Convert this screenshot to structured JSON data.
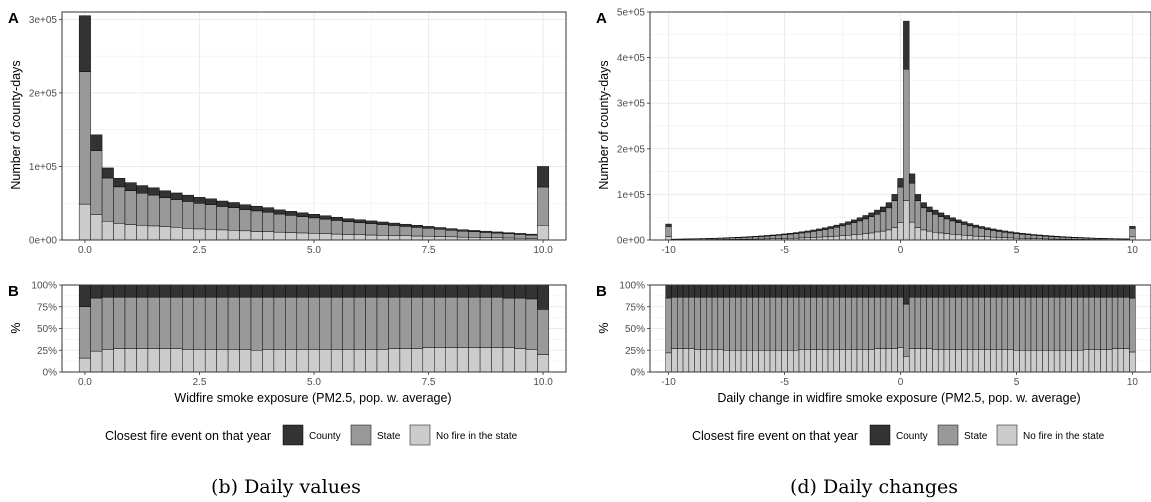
{
  "colors": {
    "county": "#333333",
    "state": "#999999",
    "nofire": "#cccccc",
    "grid": "#ebebeb",
    "panel_border": "#333333"
  },
  "legend": {
    "title": "Closest fire event on that year",
    "entries": [
      {
        "key": "county",
        "label": "County"
      },
      {
        "key": "state",
        "label": "State"
      },
      {
        "key": "nofire",
        "label": "No fire in the state"
      }
    ]
  },
  "captions": {
    "left": "(b) Daily values",
    "right": "(d) Daily changes"
  },
  "chart_data": [
    {
      "id": "b",
      "type": "bar",
      "stacked": true,
      "panel_labels": [
        "A",
        "B"
      ],
      "xlabel": "Widfire smoke exposure (PM2.5, pop. w. average)",
      "ylabel_top": "Number of county-days",
      "ylabel_bottom": "%",
      "xlim": [
        -0.5,
        10.5
      ],
      "ylim_top": [
        0,
        310000
      ],
      "ylim_bottom": [
        0,
        1
      ],
      "grid": true,
      "x_ticks": [
        0,
        2.5,
        5,
        7.5,
        10
      ],
      "x_tick_labels": [
        "0.0",
        "2.5",
        "5.0",
        "7.5",
        "10.0"
      ],
      "y_ticks_top": [
        0,
        100000,
        200000,
        300000
      ],
      "y_tick_labels_top": [
        "0e+00",
        "1e+05",
        "2e+05",
        "3e+05"
      ],
      "y_ticks_bottom": [
        0,
        0.25,
        0.5,
        0.75,
        1
      ],
      "y_tick_labels_bottom": [
        "0%",
        "25%",
        "50%",
        "75%",
        "100%"
      ],
      "x_start": 0,
      "x_step": 0.25,
      "n_bars": 41,
      "totals": [
        305000,
        143000,
        98000,
        84000,
        78000,
        74000,
        71000,
        67000,
        64000,
        61000,
        58000,
        56000,
        53000,
        51000,
        48000,
        46000,
        44000,
        41000,
        39000,
        37000,
        35000,
        33000,
        31000,
        29000,
        27500,
        26000,
        24500,
        23000,
        21500,
        20000,
        18500,
        17000,
        15500,
        14000,
        13000,
        12000,
        11000,
        10000,
        9000,
        8000,
        100000
      ],
      "series": [
        {
          "name": "County",
          "share": [
            0.25,
            0.15,
            0.14,
            0.14,
            0.14,
            0.14,
            0.14,
            0.14,
            0.14,
            0.14,
            0.14,
            0.14,
            0.14,
            0.14,
            0.14,
            0.14,
            0.14,
            0.14,
            0.14,
            0.14,
            0.14,
            0.14,
            0.14,
            0.14,
            0.14,
            0.14,
            0.14,
            0.14,
            0.14,
            0.14,
            0.14,
            0.14,
            0.14,
            0.14,
            0.14,
            0.14,
            0.14,
            0.15,
            0.15,
            0.16,
            0.28
          ]
        },
        {
          "name": "State",
          "share": [
            0.59,
            0.61,
            0.6,
            0.59,
            0.59,
            0.59,
            0.59,
            0.59,
            0.59,
            0.6,
            0.6,
            0.6,
            0.6,
            0.6,
            0.6,
            0.61,
            0.6,
            0.6,
            0.6,
            0.6,
            0.6,
            0.6,
            0.6,
            0.6,
            0.6,
            0.6,
            0.6,
            0.59,
            0.59,
            0.59,
            0.58,
            0.58,
            0.58,
            0.58,
            0.58,
            0.58,
            0.58,
            0.57,
            0.58,
            0.58,
            0.52
          ]
        },
        {
          "name": "No fire in the state",
          "share": [
            0.16,
            0.24,
            0.26,
            0.27,
            0.27,
            0.27,
            0.27,
            0.27,
            0.27,
            0.26,
            0.26,
            0.26,
            0.26,
            0.26,
            0.26,
            0.25,
            0.26,
            0.26,
            0.26,
            0.26,
            0.26,
            0.26,
            0.26,
            0.26,
            0.26,
            0.26,
            0.26,
            0.27,
            0.27,
            0.27,
            0.28,
            0.28,
            0.28,
            0.28,
            0.28,
            0.28,
            0.28,
            0.28,
            0.27,
            0.26,
            0.2
          ]
        }
      ]
    },
    {
      "id": "d",
      "type": "bar",
      "stacked": true,
      "panel_labels": [
        "A",
        "B"
      ],
      "xlabel": "Daily change in widfire smoke exposure (PM2.5, pop. w. average)",
      "ylabel_top": "Number of county-days",
      "ylabel_bottom": "%",
      "xlim": [
        -10.8,
        10.8
      ],
      "ylim_top": [
        0,
        500000
      ],
      "ylim_bottom": [
        0,
        1
      ],
      "grid": true,
      "x_ticks": [
        -10,
        -5,
        0,
        5,
        10
      ],
      "x_tick_labels": [
        "-10",
        "-5",
        "0",
        "5",
        "10"
      ],
      "y_ticks_top": [
        0,
        100000,
        200000,
        300000,
        400000,
        500000
      ],
      "y_tick_labels_top": [
        "0e+00",
        "1e+05",
        "2e+05",
        "3e+05",
        "4e+05",
        "5e+05"
      ],
      "y_ticks_bottom": [
        0,
        0.25,
        0.5,
        0.75,
        1
      ],
      "y_tick_labels_bottom": [
        "0%",
        "25%",
        "50%",
        "75%",
        "100%"
      ],
      "x_start": -10,
      "x_step": 0.25,
      "n_bars": 81,
      "totals": [
        35000,
        2000,
        2200,
        2500,
        2700,
        3000,
        3300,
        3700,
        4000,
        4500,
        5000,
        5500,
        6100,
        6700,
        7400,
        8200,
        9000,
        10000,
        11000,
        12100,
        13400,
        14800,
        16300,
        18000,
        19900,
        22000,
        24300,
        26800,
        29600,
        32700,
        36100,
        39900,
        44100,
        48700,
        53800,
        59400,
        65600,
        72500,
        82000,
        100000,
        135000,
        480000,
        145000,
        100000,
        82000,
        72500,
        65600,
        59400,
        53800,
        48700,
        44100,
        39900,
        36100,
        32700,
        29600,
        26800,
        24300,
        22000,
        19900,
        18000,
        16300,
        14800,
        13400,
        12100,
        11000,
        10000,
        9000,
        8200,
        7400,
        6700,
        6100,
        5500,
        5000,
        4500,
        4000,
        3700,
        3300,
        3000,
        2700,
        2500,
        30000
      ],
      "series": [
        {
          "name": "County",
          "share": [
            0.15,
            0.14,
            0.14,
            0.14,
            0.14,
            0.14,
            0.14,
            0.14,
            0.14,
            0.14,
            0.14,
            0.14,
            0.14,
            0.14,
            0.14,
            0.14,
            0.14,
            0.14,
            0.14,
            0.14,
            0.14,
            0.14,
            0.14,
            0.14,
            0.14,
            0.14,
            0.14,
            0.14,
            0.14,
            0.14,
            0.14,
            0.14,
            0.14,
            0.14,
            0.14,
            0.14,
            0.14,
            0.14,
            0.14,
            0.14,
            0.14,
            0.22,
            0.14,
            0.14,
            0.14,
            0.14,
            0.14,
            0.14,
            0.14,
            0.14,
            0.14,
            0.14,
            0.14,
            0.14,
            0.14,
            0.14,
            0.14,
            0.14,
            0.14,
            0.14,
            0.14,
            0.14,
            0.14,
            0.14,
            0.14,
            0.14,
            0.14,
            0.14,
            0.14,
            0.14,
            0.14,
            0.14,
            0.14,
            0.14,
            0.14,
            0.14,
            0.14,
            0.14,
            0.14,
            0.14,
            0.15
          ]
        },
        {
          "name": "State",
          "share": [
            0.63,
            0.59,
            0.59,
            0.59,
            0.59,
            0.6,
            0.6,
            0.6,
            0.6,
            0.6,
            0.61,
            0.61,
            0.61,
            0.61,
            0.61,
            0.61,
            0.61,
            0.61,
            0.61,
            0.61,
            0.61,
            0.61,
            0.61,
            0.6,
            0.6,
            0.6,
            0.6,
            0.6,
            0.6,
            0.6,
            0.6,
            0.6,
            0.6,
            0.6,
            0.6,
            0.6,
            0.59,
            0.59,
            0.59,
            0.59,
            0.58,
            0.6,
            0.59,
            0.59,
            0.59,
            0.59,
            0.6,
            0.6,
            0.6,
            0.6,
            0.6,
            0.6,
            0.6,
            0.6,
            0.6,
            0.6,
            0.6,
            0.6,
            0.6,
            0.6,
            0.61,
            0.61,
            0.61,
            0.61,
            0.61,
            0.61,
            0.61,
            0.61,
            0.61,
            0.61,
            0.61,
            0.61,
            0.6,
            0.6,
            0.6,
            0.6,
            0.6,
            0.59,
            0.59,
            0.59,
            0.62
          ]
        },
        {
          "name": "No fire in the state",
          "share": [
            0.22,
            0.27,
            0.27,
            0.27,
            0.27,
            0.26,
            0.26,
            0.26,
            0.26,
            0.26,
            0.25,
            0.25,
            0.25,
            0.25,
            0.25,
            0.25,
            0.25,
            0.25,
            0.25,
            0.25,
            0.25,
            0.25,
            0.25,
            0.26,
            0.26,
            0.26,
            0.26,
            0.26,
            0.26,
            0.26,
            0.26,
            0.26,
            0.26,
            0.26,
            0.26,
            0.26,
            0.27,
            0.27,
            0.27,
            0.27,
            0.28,
            0.18,
            0.27,
            0.27,
            0.27,
            0.27,
            0.26,
            0.26,
            0.26,
            0.26,
            0.26,
            0.26,
            0.26,
            0.26,
            0.26,
            0.26,
            0.26,
            0.26,
            0.26,
            0.26,
            0.25,
            0.25,
            0.25,
            0.25,
            0.25,
            0.25,
            0.25,
            0.25,
            0.25,
            0.25,
            0.25,
            0.25,
            0.26,
            0.26,
            0.26,
            0.26,
            0.26,
            0.27,
            0.27,
            0.27,
            0.23
          ]
        }
      ]
    }
  ]
}
